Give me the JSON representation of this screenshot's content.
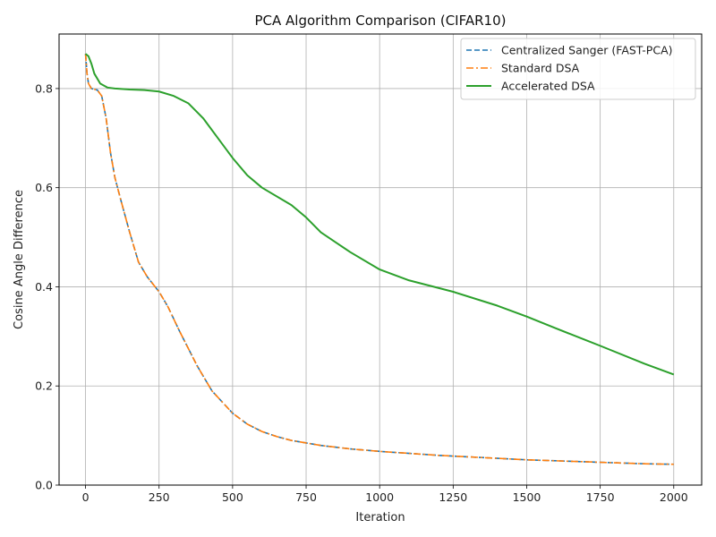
{
  "chart_data": {
    "type": "line",
    "title": "PCA Algorithm Comparison (CIFAR10)",
    "xlabel": "Iteration",
    "ylabel": "Cosine Angle Difference",
    "xlim": [
      -90,
      2095
    ],
    "ylim": [
      0.0,
      0.91
    ],
    "xticks": [
      0,
      250,
      500,
      750,
      1000,
      1250,
      1500,
      1750,
      2000
    ],
    "xtick_labels": [
      "0",
      "250",
      "500",
      "750",
      "1000",
      "1250",
      "1500",
      "1750",
      "2000"
    ],
    "yticks": [
      0.0,
      0.2,
      0.4,
      0.6,
      0.8
    ],
    "ytick_labels": [
      "0.0",
      "0.2",
      "0.4",
      "0.6",
      "0.8"
    ],
    "grid": true,
    "legend_position": "top-right",
    "series": [
      {
        "name": "Centralized Sanger (FAST-PCA)",
        "color": "#1f77b4",
        "style": "dashed",
        "x": [
          0,
          5,
          10,
          20,
          40,
          55,
          70,
          85,
          100,
          120,
          150,
          180,
          210,
          250,
          280,
          320,
          380,
          430,
          500,
          550,
          600,
          650,
          700,
          800,
          900,
          1000,
          1100,
          1200,
          1300,
          1400,
          1500,
          1600,
          1700,
          1800,
          1900,
          2000
        ],
        "y": [
          0.87,
          0.83,
          0.81,
          0.8,
          0.797,
          0.785,
          0.74,
          0.67,
          0.62,
          0.575,
          0.51,
          0.45,
          0.42,
          0.39,
          0.36,
          0.31,
          0.24,
          0.19,
          0.145,
          0.123,
          0.108,
          0.098,
          0.09,
          0.08,
          0.073,
          0.068,
          0.064,
          0.06,
          0.057,
          0.054,
          0.051,
          0.049,
          0.047,
          0.045,
          0.043,
          0.042
        ]
      },
      {
        "name": "Standard DSA",
        "color": "#ff7f0e",
        "style": "dashdot",
        "x": [
          0,
          5,
          10,
          20,
          40,
          55,
          70,
          85,
          100,
          120,
          150,
          180,
          210,
          250,
          280,
          320,
          380,
          430,
          500,
          550,
          600,
          650,
          700,
          800,
          900,
          1000,
          1100,
          1200,
          1300,
          1400,
          1500,
          1600,
          1700,
          1800,
          1900,
          2000
        ],
        "y": [
          0.87,
          0.83,
          0.81,
          0.8,
          0.797,
          0.785,
          0.74,
          0.67,
          0.62,
          0.575,
          0.51,
          0.45,
          0.42,
          0.39,
          0.36,
          0.31,
          0.24,
          0.19,
          0.145,
          0.123,
          0.108,
          0.098,
          0.09,
          0.08,
          0.073,
          0.068,
          0.064,
          0.06,
          0.057,
          0.054,
          0.051,
          0.049,
          0.047,
          0.045,
          0.043,
          0.042
        ]
      },
      {
        "name": "Accelerated DSA",
        "color": "#2ca02c",
        "style": "solid",
        "x": [
          0,
          10,
          20,
          30,
          50,
          75,
          100,
          150,
          200,
          250,
          300,
          350,
          400,
          450,
          500,
          550,
          600,
          700,
          750,
          800,
          900,
          1000,
          1100,
          1250,
          1400,
          1500,
          1600,
          1750,
          1900,
          2000
        ],
        "y": [
          0.87,
          0.865,
          0.85,
          0.83,
          0.81,
          0.802,
          0.8,
          0.798,
          0.797,
          0.794,
          0.785,
          0.77,
          0.74,
          0.7,
          0.66,
          0.625,
          0.6,
          0.565,
          0.54,
          0.51,
          0.47,
          0.435,
          0.413,
          0.39,
          0.362,
          0.34,
          0.316,
          0.281,
          0.245,
          0.223
        ]
      }
    ]
  }
}
